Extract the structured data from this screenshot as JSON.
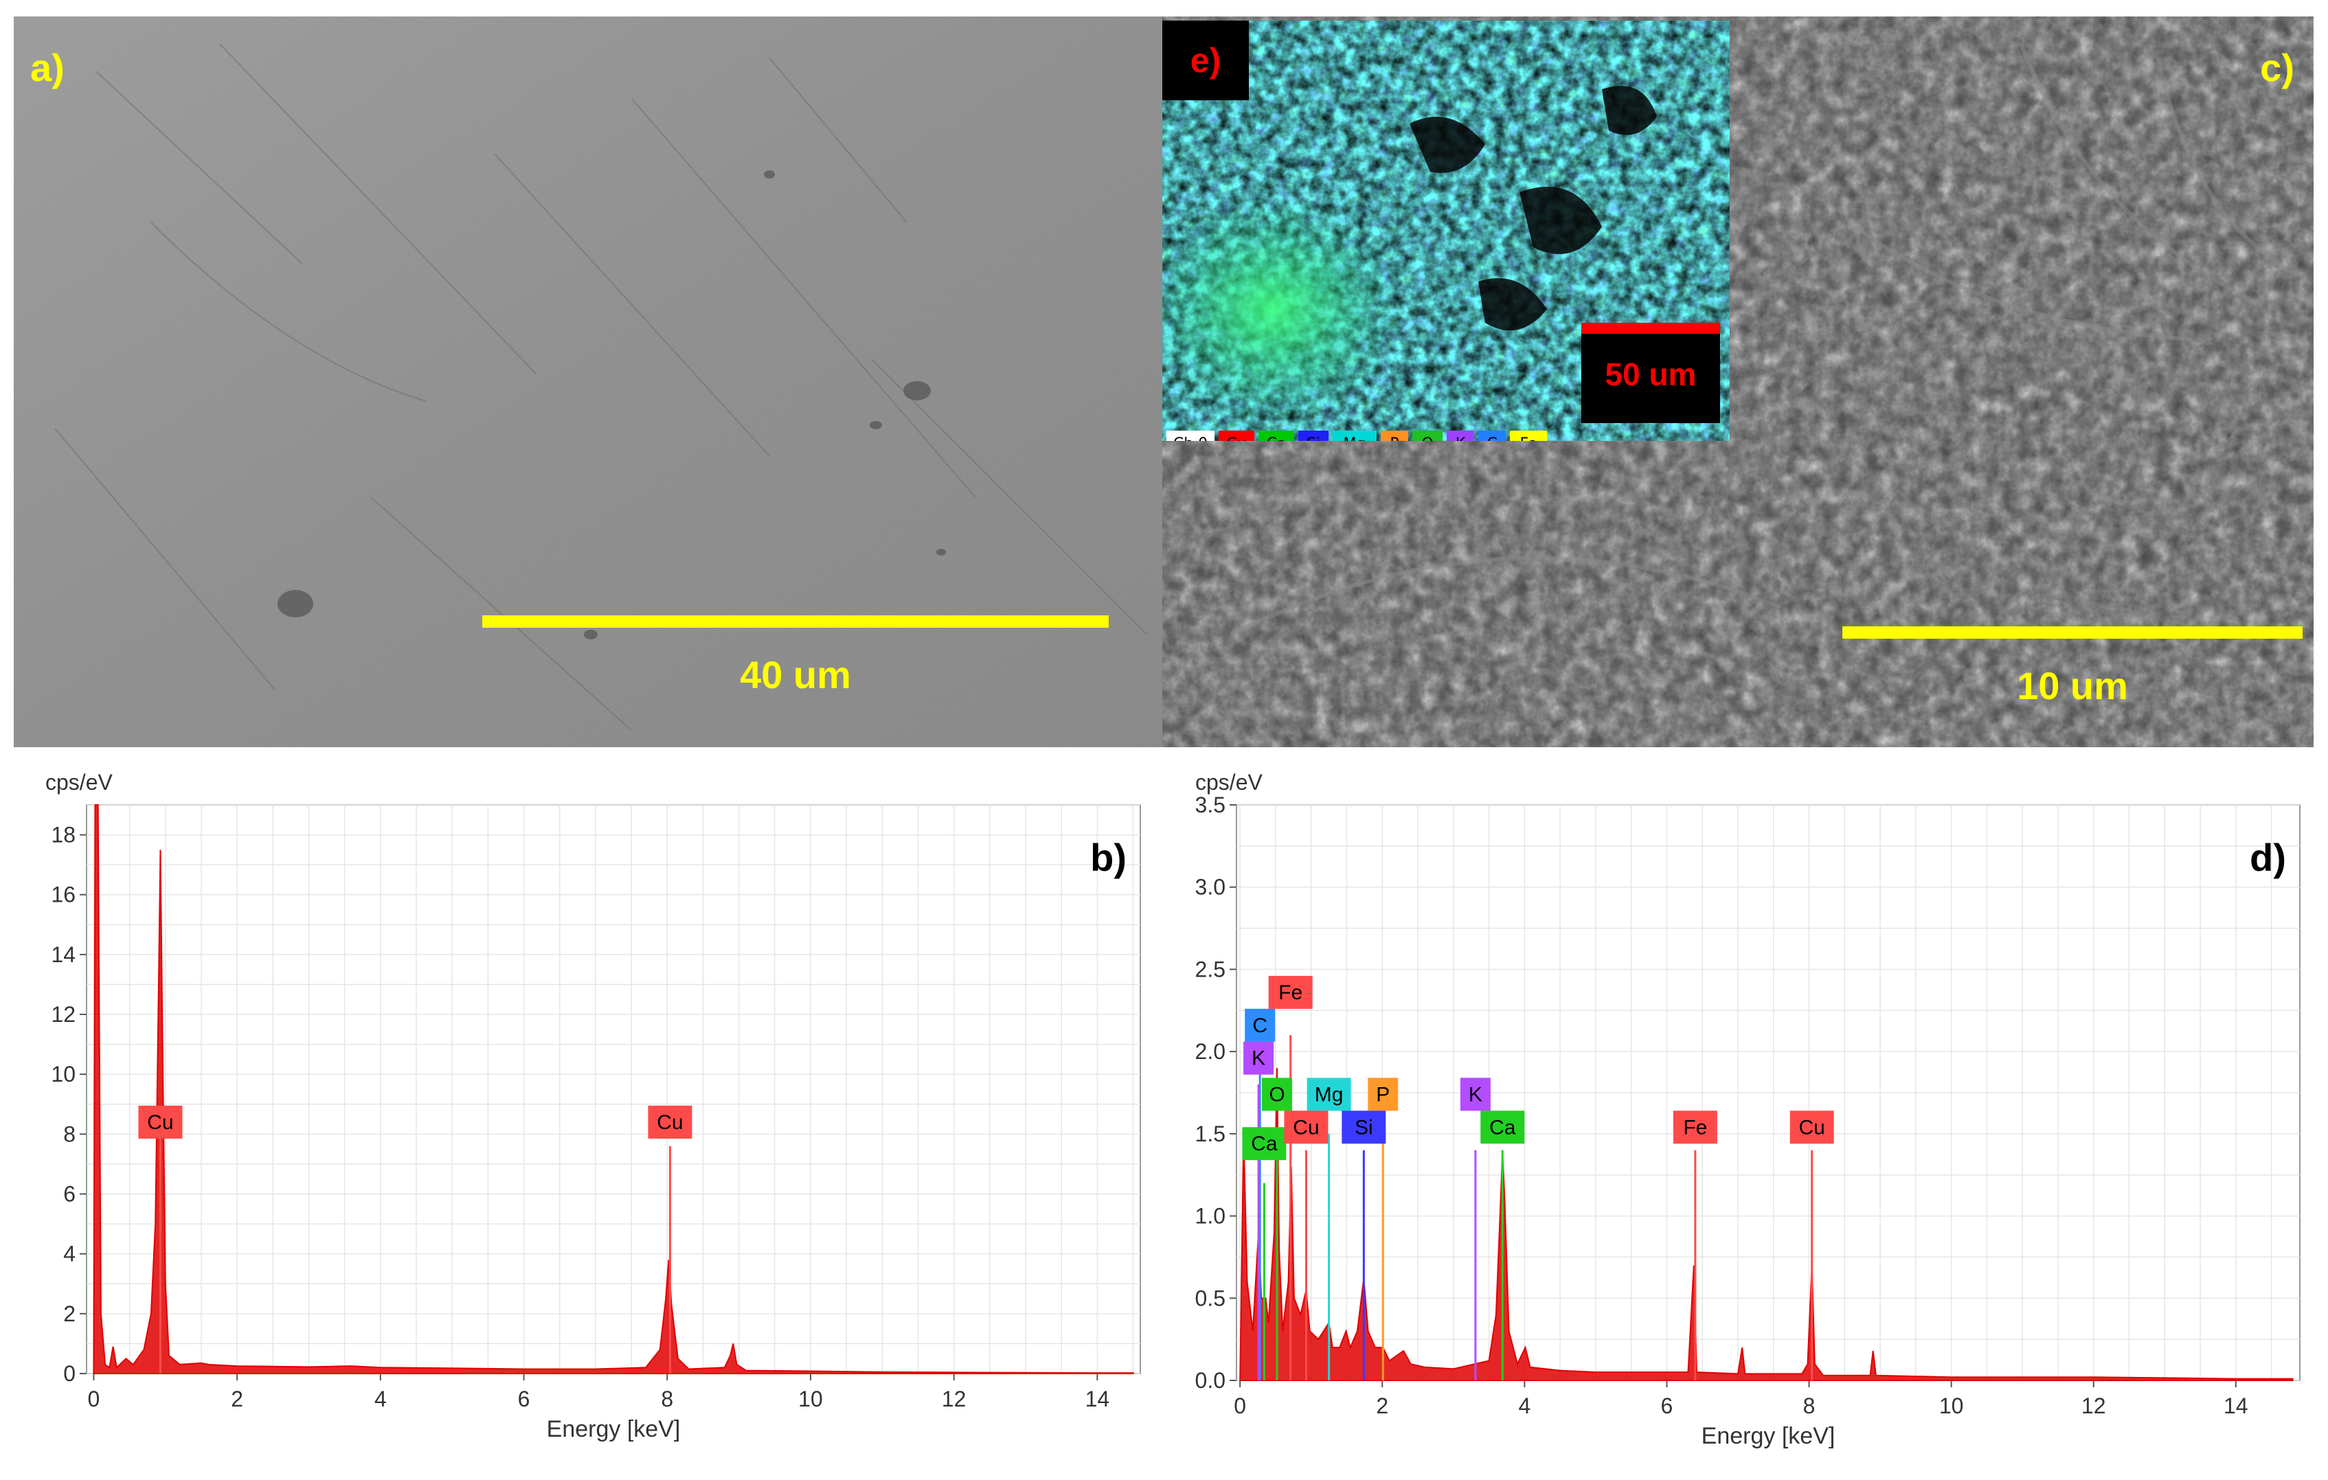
{
  "panels": {
    "a": {
      "label": "a)",
      "scale_bar": "40 um"
    },
    "c": {
      "label": "c)",
      "scale_bar": "10 um"
    },
    "e": {
      "label": "e)",
      "scale_bar": "50 um",
      "legend": [
        {
          "text": "Ch 0",
          "color": "#ffffff"
        },
        {
          "text": "Cu",
          "color": "#ff0000"
        },
        {
          "text": "Ca",
          "color": "#00c800"
        },
        {
          "text": "Si",
          "color": "#2020ff"
        },
        {
          "text": "Mg",
          "color": "#00d8d8"
        },
        {
          "text": "P",
          "color": "#ff9020"
        },
        {
          "text": "O",
          "color": "#20c020"
        },
        {
          "text": "K",
          "color": "#a040ff"
        },
        {
          "text": "C",
          "color": "#2080ff"
        },
        {
          "text": "Fe",
          "color": "#ffff00"
        }
      ]
    }
  },
  "chart_data": [
    {
      "id": "b",
      "type": "line",
      "panel_label": "b)",
      "ylabel": "cps/eV",
      "xlabel": "Energy [keV]",
      "xlim": [
        -0.1,
        14.6
      ],
      "ylim": [
        0,
        19
      ],
      "xticks": [
        0,
        2,
        4,
        6,
        8,
        10,
        12,
        14
      ],
      "yticks": [
        0,
        2,
        4,
        6,
        8,
        10,
        12,
        14,
        16,
        18
      ],
      "ytick_labels": [
        "0",
        "2",
        "4",
        "6",
        "8",
        "10",
        "12",
        "14",
        "16",
        "18"
      ],
      "series_color": "#e00000",
      "spectrum": [
        [
          0,
          0
        ],
        [
          0.02,
          19
        ],
        [
          0.06,
          19
        ],
        [
          0.1,
          2.0
        ],
        [
          0.16,
          0.3
        ],
        [
          0.22,
          0.2
        ],
        [
          0.27,
          0.9
        ],
        [
          0.32,
          0.2
        ],
        [
          0.45,
          0.5
        ],
        [
          0.55,
          0.3
        ],
        [
          0.7,
          0.8
        ],
        [
          0.8,
          2.0
        ],
        [
          0.86,
          5.0
        ],
        [
          0.9,
          12.0
        ],
        [
          0.93,
          17.5
        ],
        [
          0.96,
          11.0
        ],
        [
          1.0,
          3.0
        ],
        [
          1.05,
          0.6
        ],
        [
          1.2,
          0.3
        ],
        [
          1.5,
          0.35
        ],
        [
          1.6,
          0.3
        ],
        [
          2.0,
          0.25
        ],
        [
          3.0,
          0.22
        ],
        [
          3.6,
          0.25
        ],
        [
          4.0,
          0.2
        ],
        [
          5.0,
          0.18
        ],
        [
          6.0,
          0.15
        ],
        [
          7.0,
          0.15
        ],
        [
          7.7,
          0.2
        ],
        [
          7.9,
          0.8
        ],
        [
          7.98,
          2.5
        ],
        [
          8.02,
          3.8
        ],
        [
          8.06,
          2.3
        ],
        [
          8.15,
          0.5
        ],
        [
          8.3,
          0.15
        ],
        [
          8.8,
          0.2
        ],
        [
          8.88,
          0.6
        ],
        [
          8.92,
          1.0
        ],
        [
          8.97,
          0.3
        ],
        [
          9.1,
          0.1
        ],
        [
          10,
          0.08
        ],
        [
          11,
          0.05
        ],
        [
          12,
          0.04
        ],
        [
          13,
          0.03
        ],
        [
          14,
          0.02
        ],
        [
          14.5,
          0.02
        ]
      ],
      "peak_labels": [
        {
          "text": "Cu",
          "energy": 0.93,
          "y": 8.4,
          "line_top": 8.4,
          "color": "#ff4a4a"
        },
        {
          "text": "Cu",
          "energy": 8.04,
          "y": 8.4,
          "line_top": 7.6,
          "color": "#ff4a4a"
        }
      ]
    },
    {
      "id": "d",
      "type": "line",
      "panel_label": "d)",
      "ylabel": "cps/eV",
      "xlabel": "Energy [keV]",
      "xlim": [
        -0.05,
        14.9
      ],
      "ylim": [
        0,
        3.5
      ],
      "xticks": [
        0,
        2,
        4,
        6,
        8,
        10,
        12,
        14
      ],
      "yticks": [
        0,
        0.5,
        1.0,
        1.5,
        2.0,
        2.5,
        3.0,
        3.5
      ],
      "ytick_labels": [
        "0.0",
        "0.5",
        "1.0",
        "1.5",
        "2.0",
        "2.5",
        "3.0",
        "3.5"
      ],
      "series_color": "#e00000",
      "spectrum": [
        [
          0,
          0
        ],
        [
          0.05,
          1.5
        ],
        [
          0.1,
          0.6
        ],
        [
          0.18,
          0.3
        ],
        [
          0.26,
          0.9
        ],
        [
          0.3,
          0.5
        ],
        [
          0.36,
          0.5
        ],
        [
          0.4,
          0.35
        ],
        [
          0.48,
          0.9
        ],
        [
          0.52,
          1.9
        ],
        [
          0.55,
          0.8
        ],
        [
          0.6,
          0.3
        ],
        [
          0.68,
          0.6
        ],
        [
          0.72,
          1.3
        ],
        [
          0.76,
          0.5
        ],
        [
          0.85,
          0.4
        ],
        [
          0.93,
          0.55
        ],
        [
          0.98,
          0.3
        ],
        [
          1.1,
          0.25
        ],
        [
          1.25,
          0.35
        ],
        [
          1.3,
          0.2
        ],
        [
          1.4,
          0.2
        ],
        [
          1.49,
          0.3
        ],
        [
          1.55,
          0.2
        ],
        [
          1.65,
          0.3
        ],
        [
          1.74,
          0.62
        ],
        [
          1.8,
          0.3
        ],
        [
          1.9,
          0.2
        ],
        [
          2.01,
          0.2
        ],
        [
          2.1,
          0.12
        ],
        [
          2.3,
          0.18
        ],
        [
          2.4,
          0.1
        ],
        [
          2.6,
          0.08
        ],
        [
          3.0,
          0.07
        ],
        [
          3.3,
          0.1
        ],
        [
          3.5,
          0.12
        ],
        [
          3.6,
          0.4
        ],
        [
          3.66,
          1.05
        ],
        [
          3.69,
          1.38
        ],
        [
          3.72,
          1.1
        ],
        [
          3.78,
          0.3
        ],
        [
          3.9,
          0.1
        ],
        [
          4.01,
          0.2
        ],
        [
          4.08,
          0.08
        ],
        [
          4.5,
          0.06
        ],
        [
          5,
          0.05
        ],
        [
          5.5,
          0.05
        ],
        [
          6.0,
          0.05
        ],
        [
          6.3,
          0.05
        ],
        [
          6.38,
          0.7
        ],
        [
          6.42,
          0.05
        ],
        [
          7.0,
          0.04
        ],
        [
          7.06,
          0.2
        ],
        [
          7.1,
          0.04
        ],
        [
          7.9,
          0.04
        ],
        [
          7.98,
          0.1
        ],
        [
          8.04,
          0.7
        ],
        [
          8.08,
          0.1
        ],
        [
          8.2,
          0.03
        ],
        [
          8.86,
          0.03
        ],
        [
          8.9,
          0.18
        ],
        [
          8.94,
          0.03
        ],
        [
          10,
          0.02
        ],
        [
          11,
          0.02
        ],
        [
          12,
          0.02
        ],
        [
          14,
          0.01
        ],
        [
          14.8,
          0.01
        ]
      ],
      "peak_labels": [
        {
          "text": "Fe",
          "energy": 0.71,
          "y": 2.36,
          "line_top": 2.1,
          "color": "#ff4a4a"
        },
        {
          "text": "C",
          "energy": 0.28,
          "y": 2.16,
          "line_top": 2.0,
          "color": "#2e8cff"
        },
        {
          "text": "K",
          "energy": 0.26,
          "y": 1.96,
          "line_top": 1.8,
          "color": "#b44cff"
        },
        {
          "text": "O",
          "energy": 0.52,
          "y": 1.74,
          "line_top": 1.5,
          "color": "#22d022"
        },
        {
          "text": "Ca",
          "energy": 0.34,
          "y": 1.44,
          "line_top": 1.2,
          "color": "#22d022"
        },
        {
          "text": "Mg",
          "energy": 1.25,
          "y": 1.74,
          "line_top": 1.5,
          "color": "#22d6d6"
        },
        {
          "text": "P",
          "energy": 2.01,
          "y": 1.74,
          "line_top": 1.5,
          "color": "#ff9a2a"
        },
        {
          "text": "Cu",
          "energy": 0.93,
          "y": 1.54,
          "line_top": 1.4,
          "color": "#ff4a4a"
        },
        {
          "text": "Si",
          "energy": 1.74,
          "y": 1.54,
          "line_top": 1.4,
          "color": "#3a3aff"
        },
        {
          "text": "K",
          "energy": 3.31,
          "y": 1.74,
          "line_top": 1.4,
          "color": "#b44cff"
        },
        {
          "text": "Ca",
          "energy": 3.69,
          "y": 1.54,
          "line_top": 1.4,
          "color": "#22d022"
        },
        {
          "text": "Fe",
          "energy": 6.4,
          "y": 1.54,
          "line_top": 1.4,
          "color": "#ff4a4a"
        },
        {
          "text": "Cu",
          "energy": 8.04,
          "y": 1.54,
          "line_top": 1.4,
          "color": "#ff4a4a"
        }
      ]
    }
  ]
}
